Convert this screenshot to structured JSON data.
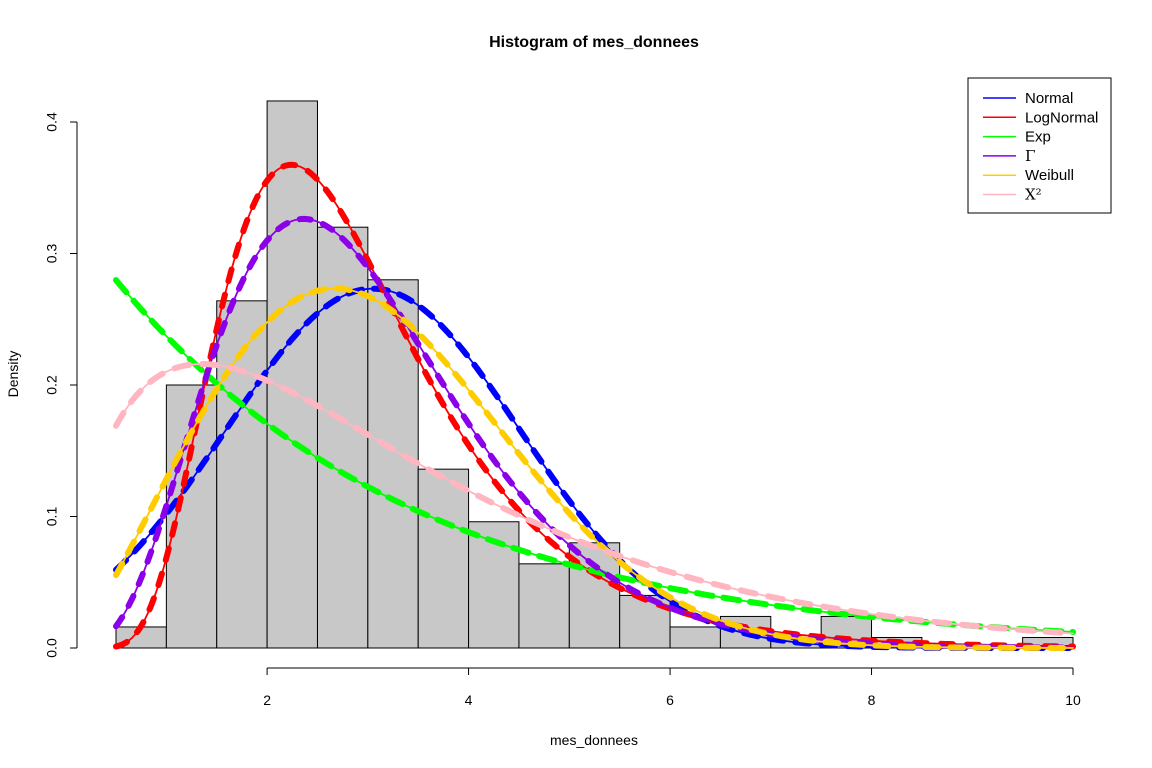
{
  "chart_data": {
    "type": "bar",
    "title": "Histogram of mes_donnees",
    "xlabel": "mes_donnees",
    "ylabel": "Density",
    "xlim": [
      0.5,
      10
    ],
    "ylim": [
      0,
      0.42
    ],
    "x_ticks": [
      2,
      4,
      6,
      8,
      10
    ],
    "x_tick_labels": [
      "2",
      "4",
      "6",
      "8",
      "10"
    ],
    "y_ticks": [
      0.0,
      0.1,
      0.2,
      0.3,
      0.4
    ],
    "y_tick_labels": [
      "0.0",
      "0.1",
      "0.2",
      "0.3",
      "0.4"
    ],
    "grid": false,
    "histogram": {
      "bin_edges": [
        0.5,
        1,
        1.5,
        2,
        2.5,
        3,
        3.5,
        4,
        4.5,
        5,
        5.5,
        6,
        6.5,
        7,
        7.5,
        8,
        8.5,
        9,
        9.5,
        10
      ],
      "density": [
        0.016,
        0.2,
        0.264,
        0.416,
        0.32,
        0.28,
        0.136,
        0.096,
        0.064,
        0.08,
        0.04,
        0.016,
        0.024,
        0.008,
        0.024,
        0.008,
        0,
        0,
        0.008
      ],
      "fill_color": "#c8c8c8"
    },
    "legend": {
      "position": "top-right",
      "entries": [
        {
          "name": "Normal",
          "color": "#0000ff"
        },
        {
          "name": "LogNormal",
          "color": "#ff0000"
        },
        {
          "name": "Exp",
          "color": "#00ff00"
        },
        {
          "name": "Γ",
          "color": "#8b00e8"
        },
        {
          "name": "Weibull",
          "color": "#ffcc00"
        },
        {
          "name": "X²",
          "color": "#ffb6c1"
        }
      ]
    },
    "series": [
      {
        "name": "Normal",
        "color": "#0000ff",
        "distribution": "normal",
        "params": {
          "mean": 3.05,
          "sd": 1.46
        }
      },
      {
        "name": "LogNormal",
        "color": "#ff0000",
        "distribution": "lognormal",
        "params": {
          "meanlog": 1.0,
          "sdlog": 0.44
        }
      },
      {
        "name": "Exp",
        "color": "#00ff00",
        "distribution": "exponential",
        "params": {
          "rate": 0.33
        }
      },
      {
        "name": "Γ",
        "color": "#8b00e8",
        "distribution": "gamma",
        "params": {
          "shape": 4.9,
          "rate": 1.65
        }
      },
      {
        "name": "Weibull",
        "color": "#ffcc00",
        "distribution": "weibull",
        "params": {
          "shape": 2.28,
          "scale": 3.44
        }
      },
      {
        "name": "X²",
        "color": "#ffb6c1",
        "distribution": "chisquare",
        "params": {
          "df": 3.35
        }
      }
    ]
  }
}
